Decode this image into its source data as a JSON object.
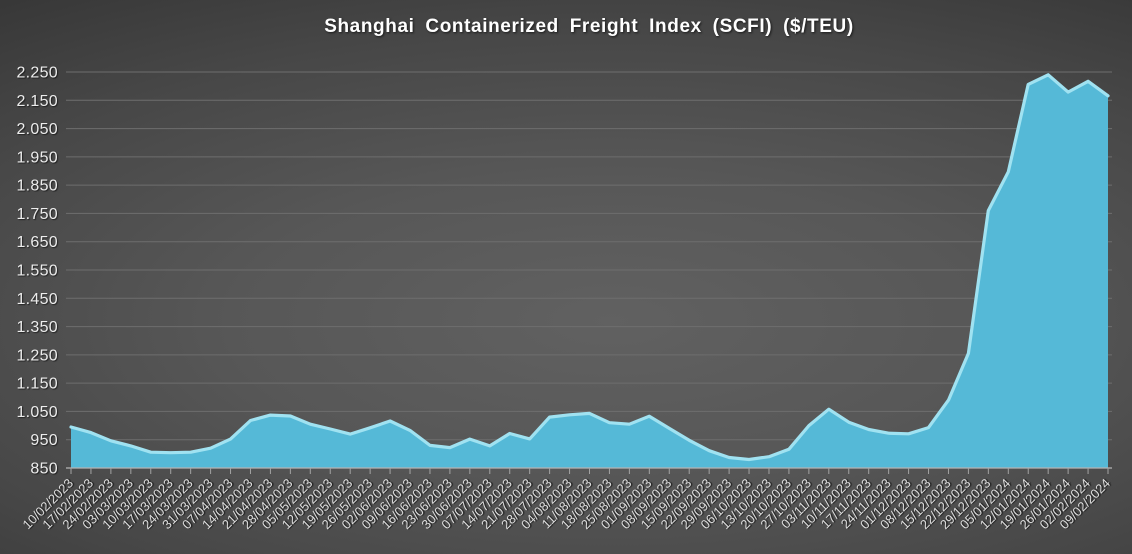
{
  "chart_data": {
    "type": "area",
    "title": "Shanghai Containerized Freight Index (SCFI) ($/TEU)",
    "xlabel": "",
    "ylabel": "",
    "ylim": [
      850,
      2250
    ],
    "y_tick_step": 100,
    "y_tick_labels": [
      "850",
      "950",
      "1.050",
      "1.150",
      "1.250",
      "1.350",
      "1.450",
      "1.550",
      "1.650",
      "1.750",
      "1.850",
      "1.950",
      "2.050",
      "2.150",
      "2.250"
    ],
    "grid": true,
    "legend": false,
    "categories": [
      "10/02/2023",
      "17/02/2023",
      "24/02/2023",
      "03/03/2023",
      "10/03/2023",
      "17/03/2023",
      "24/03/2023",
      "31/03/2023",
      "07/04/2023",
      "14/04/2023",
      "21/04/2023",
      "28/04/2023",
      "05/05/2023",
      "12/05/2023",
      "19/05/2023",
      "26/05/2023",
      "02/06/2023",
      "09/06/2023",
      "16/06/2023",
      "23/06/2023",
      "30/06/2023",
      "07/07/2023",
      "14/07/2023",
      "21/07/2023",
      "28/07/2023",
      "04/08/2023",
      "11/08/2023",
      "18/08/2023",
      "25/08/2023",
      "01/09/2023",
      "08/09/2023",
      "15/09/2023",
      "22/09/2023",
      "29/09/2023",
      "06/10/2023",
      "13/10/2023",
      "20/10/2023",
      "27/10/2023",
      "03/11/2023",
      "10/11/2023",
      "17/11/2023",
      "24/11/2023",
      "01/12/2023",
      "08/12/2023",
      "15/12/2023",
      "22/12/2023",
      "29/12/2023",
      "05/01/2024",
      "12/01/2024",
      "19/01/2024",
      "26/01/2024",
      "02/02/2024",
      "09/02/2024"
    ],
    "values": [
      995,
      975,
      946,
      928,
      906,
      904,
      906,
      920,
      952,
      1018,
      1037,
      1034,
      1005,
      988,
      970,
      992,
      1016,
      983,
      930,
      922,
      952,
      928,
      972,
      953,
      1030,
      1038,
      1043,
      1010,
      1005,
      1033,
      990,
      948,
      911,
      887,
      880,
      890,
      916,
      1000,
      1058,
      1012,
      986,
      973,
      971,
      993,
      1090,
      1255,
      1760,
      1897,
      2206,
      2240,
      2179,
      2217,
      2166
    ],
    "colors": {
      "area_fill": "#55B9D7",
      "area_edge": "#A0E2F1",
      "gridline": "#6e6e6e",
      "axis_line": "#b5b5b5",
      "tick": "#a3a3a3",
      "y_label": "#ececec",
      "x_label": "#dcdcdc",
      "title": "#ffffff"
    }
  }
}
